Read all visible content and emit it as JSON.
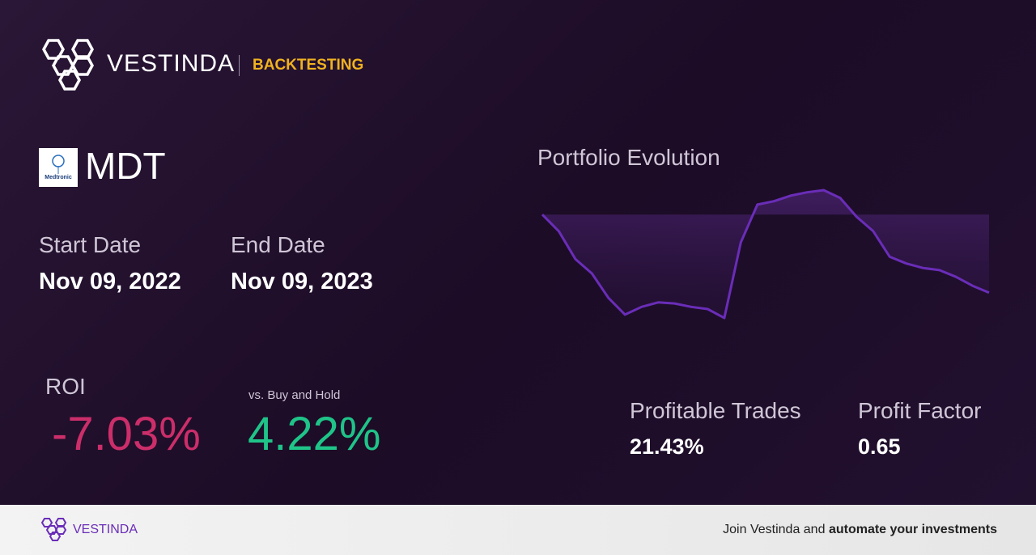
{
  "header": {
    "brand": "VESTINDA",
    "section": "BACKTESTING"
  },
  "ticker": {
    "logo_text": "Medtronic",
    "symbol": "MDT"
  },
  "dates": {
    "start_label": "Start Date",
    "start": "Nov 09, 2022",
    "end_label": "End Date",
    "end": "Nov 09, 2023"
  },
  "roi": {
    "label": "ROI",
    "value": "-7.03%",
    "compare_label": "vs. Buy and Hold",
    "compare_value": "4.22%"
  },
  "stats": {
    "trades_label": "Profitable Trades",
    "trades_value": "21.43%",
    "factor_label": "Profit Factor",
    "factor_value": "0.65"
  },
  "chart_data": {
    "type": "line",
    "title": "Portfolio Evolution",
    "color": "#6a2db8",
    "values": [
      0,
      -1.5,
      -4.0,
      -5.3,
      -7.5,
      -9.0,
      -8.3,
      -7.9,
      -8.0,
      -8.3,
      -8.5,
      -9.3,
      -2.5,
      0.9,
      1.2,
      1.7,
      2.0,
      2.2,
      1.5,
      -0.2,
      -1.5,
      -3.8,
      -4.4,
      -4.8,
      -5.0,
      -5.6,
      -6.4,
      -7.03
    ]
  },
  "footer": {
    "brand": "VESTINDA",
    "cta_prefix": "Join Vestinda and",
    "cta_bold": "automate your investments"
  }
}
